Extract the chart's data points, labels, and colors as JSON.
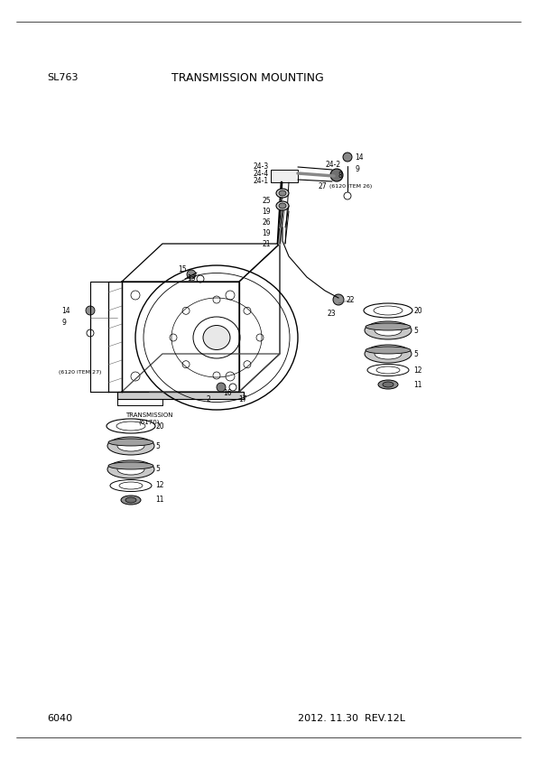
{
  "page_id": "SL763",
  "title": "TRANSMISSION MOUNTING",
  "page_number": "6040",
  "date": "2012. 11.30  REV.12L",
  "background": "#ffffff",
  "text_color": "#000000"
}
